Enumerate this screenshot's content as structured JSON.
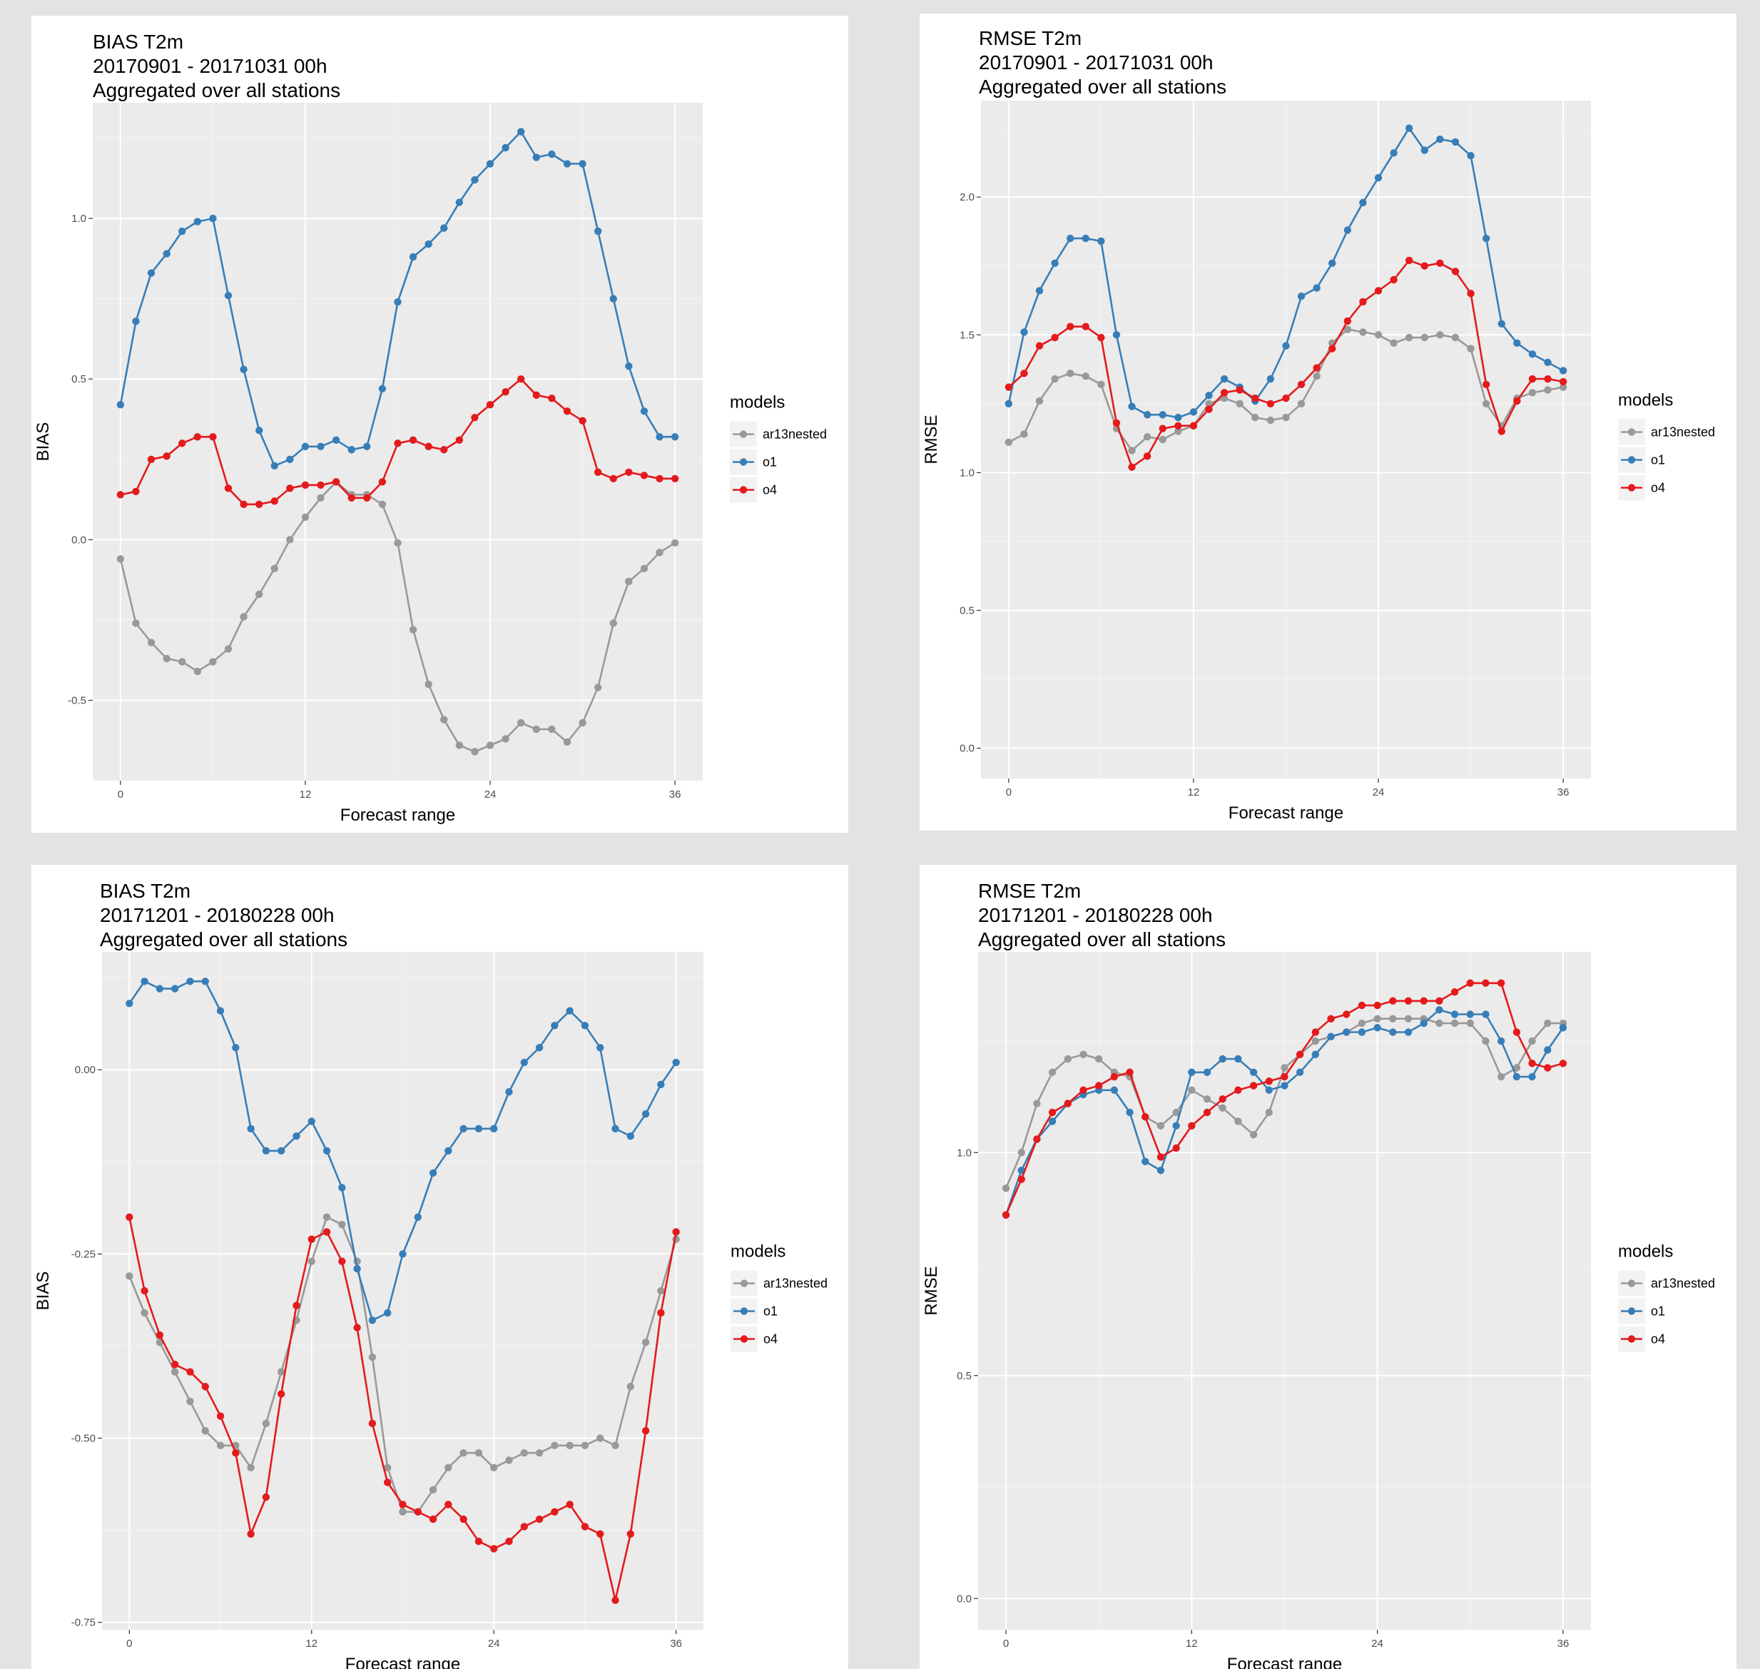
{
  "colors": {
    "panel_background": "#ebebeb",
    "grid": "#ffffff",
    "ar13nested": "#999999",
    "o1": "#377eb8",
    "o4": "#e41a1c"
  },
  "chart_data": [
    {
      "type": "line",
      "title": [
        "BIAS T2m",
        "20170901 - 20171031 00h",
        "Aggregated over all stations"
      ],
      "xlabel": "Forecast range",
      "ylabel": "BIAS",
      "xlim": [
        -1.8,
        37.8
      ],
      "ylim": [
        -0.75,
        1.36
      ],
      "xticks": [
        0,
        12,
        24,
        36
      ],
      "xtick_labels": [
        "0",
        "12",
        "24",
        "36"
      ],
      "yticks": [
        -0.5,
        0,
        0.5,
        1.0
      ],
      "ytick_labels": [
        "-0.5",
        "0.0",
        "0.5",
        "1.0"
      ],
      "legend_title": "models",
      "legend_position": "right",
      "grid": true,
      "x": [
        0,
        1,
        2,
        3,
        4,
        5,
        6,
        7,
        8,
        9,
        10,
        11,
        12,
        13,
        14,
        15,
        16,
        17,
        18,
        19,
        20,
        21,
        22,
        23,
        24,
        25,
        26,
        27,
        28,
        29,
        30,
        31,
        32,
        33,
        34,
        35,
        36
      ],
      "series": [
        {
          "name": "ar13nested",
          "color": "#999999",
          "values": [
            -0.06,
            -0.26,
            -0.32,
            -0.37,
            -0.38,
            -0.41,
            -0.38,
            -0.34,
            -0.24,
            -0.17,
            -0.09,
            0.0,
            0.07,
            0.13,
            0.18,
            0.14,
            0.14,
            0.11,
            -0.01,
            -0.28,
            -0.45,
            -0.56,
            -0.64,
            -0.66,
            -0.64,
            -0.62,
            -0.57,
            -0.59,
            -0.59,
            -0.63,
            -0.57,
            -0.46,
            -0.26,
            -0.13,
            -0.09,
            -0.04,
            -0.01
          ]
        },
        {
          "name": "o1",
          "color": "#377eb8",
          "values": [
            0.42,
            0.68,
            0.83,
            0.89,
            0.96,
            0.99,
            1.0,
            0.76,
            0.53,
            0.34,
            0.23,
            0.25,
            0.29,
            0.29,
            0.31,
            0.28,
            0.29,
            0.47,
            0.74,
            0.88,
            0.92,
            0.97,
            1.05,
            1.12,
            1.17,
            1.22,
            1.27,
            1.19,
            1.2,
            1.17,
            1.17,
            0.96,
            0.75,
            0.54,
            0.4,
            0.32,
            0.32
          ]
        },
        {
          "name": "o4",
          "color": "#e41a1c",
          "values": [
            0.14,
            0.15,
            0.25,
            0.26,
            0.3,
            0.32,
            0.32,
            0.16,
            0.11,
            0.11,
            0.12,
            0.16,
            0.17,
            0.17,
            0.18,
            0.13,
            0.13,
            0.18,
            0.3,
            0.31,
            0.29,
            0.28,
            0.31,
            0.38,
            0.42,
            0.46,
            0.5,
            0.45,
            0.44,
            0.4,
            0.37,
            0.21,
            0.19,
            0.21,
            0.2,
            0.19,
            0.19
          ]
        }
      ]
    },
    {
      "type": "line",
      "title": [
        "RMSE T2m",
        "20170901 - 20171031 00h",
        "Aggregated over all stations"
      ],
      "xlabel": "Forecast range",
      "ylabel": "RMSE",
      "xlim": [
        -1.8,
        37.8
      ],
      "ylim": [
        -0.11,
        2.35
      ],
      "xticks": [
        0,
        12,
        24,
        36
      ],
      "xtick_labels": [
        "0",
        "12",
        "24",
        "36"
      ],
      "yticks": [
        0,
        0.5,
        1.0,
        1.5,
        2.0
      ],
      "ytick_labels": [
        "0.0",
        "0.5",
        "1.0",
        "1.5",
        "2.0"
      ],
      "legend_title": "models",
      "legend_position": "right",
      "grid": true,
      "x": [
        0,
        1,
        2,
        3,
        4,
        5,
        6,
        7,
        8,
        9,
        10,
        11,
        12,
        13,
        14,
        15,
        16,
        17,
        18,
        19,
        20,
        21,
        22,
        23,
        24,
        25,
        26,
        27,
        28,
        29,
        30,
        31,
        32,
        33,
        34,
        35,
        36
      ],
      "series": [
        {
          "name": "ar13nested",
          "color": "#999999",
          "values": [
            1.11,
            1.14,
            1.26,
            1.34,
            1.36,
            1.35,
            1.32,
            1.16,
            1.08,
            1.13,
            1.12,
            1.15,
            1.17,
            1.25,
            1.27,
            1.25,
            1.2,
            1.19,
            1.2,
            1.25,
            1.35,
            1.47,
            1.52,
            1.51,
            1.5,
            1.47,
            1.49,
            1.49,
            1.5,
            1.49,
            1.45,
            1.25,
            1.17,
            1.27,
            1.29,
            1.3,
            1.31
          ]
        },
        {
          "name": "o1",
          "color": "#377eb8",
          "values": [
            1.25,
            1.51,
            1.66,
            1.76,
            1.85,
            1.85,
            1.84,
            1.5,
            1.24,
            1.21,
            1.21,
            1.2,
            1.22,
            1.28,
            1.34,
            1.31,
            1.26,
            1.34,
            1.46,
            1.64,
            1.67,
            1.76,
            1.88,
            1.98,
            2.07,
            2.16,
            2.25,
            2.17,
            2.21,
            2.2,
            2.15,
            1.85,
            1.54,
            1.47,
            1.43,
            1.4,
            1.37
          ]
        },
        {
          "name": "o4",
          "color": "#e41a1c",
          "values": [
            1.31,
            1.36,
            1.46,
            1.49,
            1.53,
            1.53,
            1.49,
            1.18,
            1.02,
            1.06,
            1.16,
            1.17,
            1.17,
            1.23,
            1.29,
            1.3,
            1.27,
            1.25,
            1.27,
            1.32,
            1.38,
            1.45,
            1.55,
            1.62,
            1.66,
            1.7,
            1.77,
            1.75,
            1.76,
            1.73,
            1.65,
            1.32,
            1.15,
            1.26,
            1.34,
            1.34,
            1.33
          ]
        }
      ]
    },
    {
      "type": "line",
      "title": [
        "BIAS T2m",
        "20171201 - 20180228 00h",
        "Aggregated over all stations"
      ],
      "xlabel": "Forecast range",
      "ylabel": "BIAS",
      "xlim": [
        -1.8,
        37.8
      ],
      "ylim": [
        -0.76,
        0.16
      ],
      "xticks": [
        0,
        12,
        24,
        36
      ],
      "xtick_labels": [
        "0",
        "12",
        "24",
        "36"
      ],
      "yticks": [
        -0.75,
        -0.5,
        -0.25,
        0
      ],
      "ytick_labels": [
        "-0.75",
        "-0.50",
        "-0.25",
        "0.00"
      ],
      "legend_title": "models",
      "legend_position": "right",
      "grid": true,
      "x": [
        0,
        1,
        2,
        3,
        4,
        5,
        6,
        7,
        8,
        9,
        10,
        11,
        12,
        13,
        14,
        15,
        16,
        17,
        18,
        19,
        20,
        21,
        22,
        23,
        24,
        25,
        26,
        27,
        28,
        29,
        30,
        31,
        32,
        33,
        34,
        35,
        36
      ],
      "series": [
        {
          "name": "ar13nested",
          "color": "#999999",
          "values": [
            -0.28,
            -0.33,
            -0.37,
            -0.41,
            -0.45,
            -0.49,
            -0.51,
            -0.51,
            -0.54,
            -0.48,
            -0.41,
            -0.34,
            -0.26,
            -0.2,
            -0.21,
            -0.26,
            -0.39,
            -0.54,
            -0.6,
            -0.6,
            -0.57,
            -0.54,
            -0.52,
            -0.52,
            -0.54,
            -0.53,
            -0.52,
            -0.52,
            -0.51,
            -0.51,
            -0.51,
            -0.5,
            -0.51,
            -0.43,
            -0.37,
            -0.3,
            -0.23
          ]
        },
        {
          "name": "o1",
          "color": "#377eb8",
          "values": [
            0.09,
            0.12,
            0.11,
            0.11,
            0.12,
            0.12,
            0.08,
            0.03,
            -0.08,
            -0.11,
            -0.11,
            -0.09,
            -0.07,
            -0.11,
            -0.16,
            -0.27,
            -0.34,
            -0.33,
            -0.25,
            -0.2,
            -0.14,
            -0.11,
            -0.08,
            -0.08,
            -0.08,
            -0.03,
            0.01,
            0.03,
            0.06,
            0.08,
            0.06,
            0.03,
            -0.08,
            -0.09,
            -0.06,
            -0.02,
            0.01
          ]
        },
        {
          "name": "o4",
          "color": "#e41a1c",
          "values": [
            -0.2,
            -0.3,
            -0.36,
            -0.4,
            -0.41,
            -0.43,
            -0.47,
            -0.52,
            -0.63,
            -0.58,
            -0.44,
            -0.32,
            -0.23,
            -0.22,
            -0.26,
            -0.35,
            -0.48,
            -0.56,
            -0.59,
            -0.6,
            -0.61,
            -0.59,
            -0.61,
            -0.64,
            -0.65,
            -0.64,
            -0.62,
            -0.61,
            -0.6,
            -0.59,
            -0.62,
            -0.63,
            -0.72,
            -0.63,
            -0.49,
            -0.33,
            -0.22
          ]
        }
      ]
    },
    {
      "type": "line",
      "title": [
        "RMSE T2m",
        "20171201 - 20180228 00h",
        "Aggregated over all stations"
      ],
      "xlabel": "Forecast range",
      "ylabel": "RMSE",
      "xlim": [
        -1.8,
        37.8
      ],
      "ylim": [
        -0.07,
        1.45
      ],
      "xticks": [
        0,
        12,
        24,
        36
      ],
      "xtick_labels": [
        "0",
        "12",
        "24",
        "36"
      ],
      "yticks": [
        0,
        0.5,
        1.0
      ],
      "ytick_labels": [
        "0.0",
        "0.5",
        "1.0"
      ],
      "legend_title": "models",
      "legend_position": "right",
      "grid": true,
      "x": [
        0,
        1,
        2,
        3,
        4,
        5,
        6,
        7,
        8,
        9,
        10,
        11,
        12,
        13,
        14,
        15,
        16,
        17,
        18,
        19,
        20,
        21,
        22,
        23,
        24,
        25,
        26,
        27,
        28,
        29,
        30,
        31,
        32,
        33,
        34,
        35,
        36
      ],
      "series": [
        {
          "name": "ar13nested",
          "color": "#999999",
          "values": [
            0.92,
            1.0,
            1.11,
            1.18,
            1.21,
            1.22,
            1.21,
            1.18,
            1.17,
            1.08,
            1.06,
            1.09,
            1.14,
            1.12,
            1.1,
            1.07,
            1.04,
            1.09,
            1.19,
            1.22,
            1.25,
            1.26,
            1.27,
            1.29,
            1.3,
            1.3,
            1.3,
            1.3,
            1.29,
            1.29,
            1.29,
            1.25,
            1.17,
            1.19,
            1.25,
            1.29,
            1.29
          ]
        },
        {
          "name": "o1",
          "color": "#377eb8",
          "values": [
            0.86,
            0.96,
            1.03,
            1.07,
            1.11,
            1.13,
            1.14,
            1.14,
            1.09,
            0.98,
            0.96,
            1.06,
            1.18,
            1.18,
            1.21,
            1.21,
            1.18,
            1.14,
            1.15,
            1.18,
            1.22,
            1.26,
            1.27,
            1.27,
            1.28,
            1.27,
            1.27,
            1.29,
            1.32,
            1.31,
            1.31,
            1.31,
            1.25,
            1.17,
            1.17,
            1.23,
            1.28
          ]
        },
        {
          "name": "o4",
          "color": "#e41a1c",
          "values": [
            0.86,
            0.94,
            1.03,
            1.09,
            1.11,
            1.14,
            1.15,
            1.17,
            1.18,
            1.08,
            0.99,
            1.01,
            1.06,
            1.09,
            1.12,
            1.14,
            1.15,
            1.16,
            1.17,
            1.22,
            1.27,
            1.3,
            1.31,
            1.33,
            1.33,
            1.34,
            1.34,
            1.34,
            1.34,
            1.36,
            1.38,
            1.38,
            1.38,
            1.27,
            1.2,
            1.19,
            1.2
          ]
        }
      ]
    }
  ]
}
